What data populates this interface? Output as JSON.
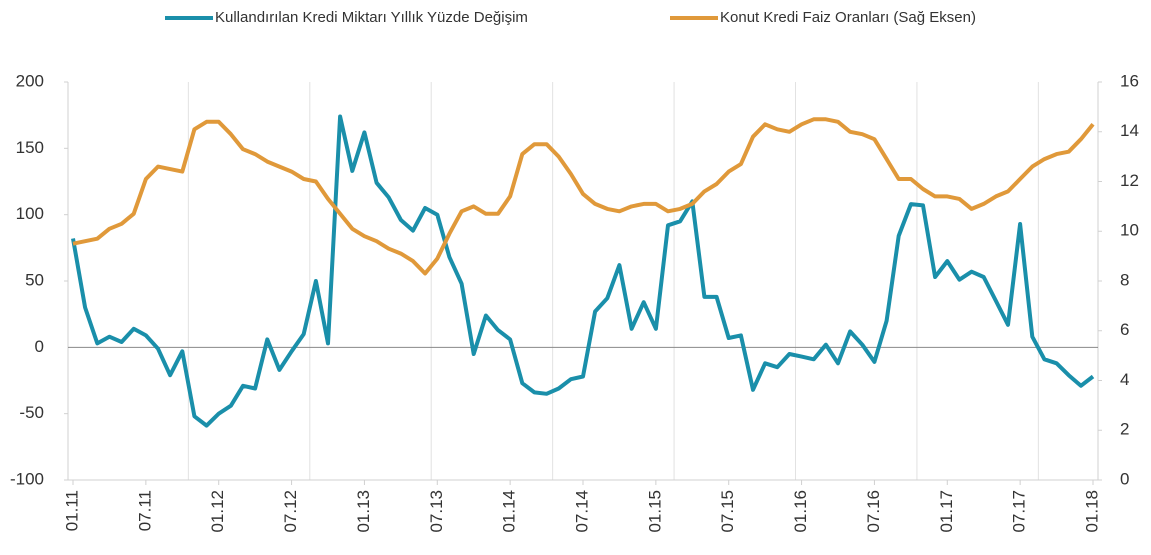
{
  "chart_data": {
    "type": "line",
    "categories": [
      "01.11",
      null,
      null,
      null,
      null,
      null,
      "07.11",
      null,
      null,
      null,
      null,
      null,
      "01.12",
      null,
      null,
      null,
      null,
      null,
      "07.12",
      null,
      null,
      null,
      null,
      null,
      "01.13",
      null,
      null,
      null,
      null,
      null,
      "07.13",
      null,
      null,
      null,
      null,
      null,
      "01.14",
      null,
      null,
      null,
      null,
      null,
      "07.14",
      null,
      null,
      null,
      null,
      null,
      "01.15",
      null,
      null,
      null,
      null,
      null,
      "07.15",
      null,
      null,
      null,
      null,
      null,
      "01.16",
      null,
      null,
      null,
      null,
      null,
      "07.16",
      null,
      null,
      null,
      null,
      null,
      "01.17",
      null,
      null,
      null,
      null,
      null,
      "07.17",
      null,
      null,
      null,
      null,
      null,
      "01.18"
    ],
    "series": [
      {
        "name": "Kullandırılan Kredi Miktarı Yıllık Yüzde Değişim",
        "color": "#1a8faa",
        "values": [
          82,
          30,
          3,
          8,
          4,
          14,
          9,
          -1,
          -21,
          -3,
          -52,
          -59,
          -50,
          -44,
          -29,
          -31,
          6,
          -17,
          -3,
          10,
          50,
          3,
          174,
          133,
          162,
          124,
          113,
          96,
          88,
          105,
          100,
          68,
          48,
          -5,
          24,
          13,
          6,
          -27,
          -34,
          -35,
          -31,
          -24,
          -22,
          27,
          37,
          62,
          14,
          34,
          14,
          92,
          95,
          110,
          38,
          38,
          7,
          9,
          -32,
          -12,
          -15,
          -5,
          -7,
          -9,
          2,
          -12,
          12,
          2,
          -11,
          20,
          84,
          108,
          107,
          53,
          65,
          51,
          57,
          53,
          35,
          17,
          93,
          8,
          -9,
          -12,
          -21,
          -29,
          -22
        ]
      },
      {
        "name": "Konut Kredi Faiz Oranları (Sağ Eksen)",
        "color": "#e0993a",
        "axis": "y2",
        "values": [
          9.5,
          9.6,
          9.7,
          10.1,
          10.3,
          10.7,
          12.1,
          12.6,
          12.5,
          12.4,
          14.1,
          14.4,
          14.4,
          13.9,
          13.3,
          13.1,
          12.8,
          12.6,
          12.4,
          12.1,
          12.0,
          11.3,
          10.7,
          10.1,
          9.8,
          9.6,
          9.3,
          9.1,
          8.8,
          8.3,
          8.9,
          9.9,
          10.8,
          11.0,
          10.7,
          10.7,
          11.4,
          13.1,
          13.5,
          13.5,
          13.0,
          12.3,
          11.5,
          11.1,
          10.9,
          10.8,
          11.0,
          11.1,
          11.1,
          10.8,
          10.9,
          11.1,
          11.6,
          11.9,
          12.4,
          12.7,
          13.8,
          14.3,
          14.1,
          14.0,
          14.3,
          14.5,
          14.5,
          14.4,
          14.0,
          13.9,
          13.7,
          12.9,
          12.1,
          12.1,
          11.7,
          11.4,
          11.4,
          11.3,
          10.9,
          11.1,
          11.4,
          11.6,
          12.1,
          12.6,
          12.9,
          13.1,
          13.2,
          13.7,
          14.3
        ]
      }
    ],
    "ylim": [
      -100,
      200
    ],
    "yticks": [
      -100,
      -50,
      0,
      50,
      100,
      150,
      200
    ],
    "y2lim": [
      0,
      16
    ],
    "y2ticks": [
      0,
      2,
      4,
      6,
      8,
      10,
      12,
      14,
      16
    ],
    "legend": "top"
  }
}
